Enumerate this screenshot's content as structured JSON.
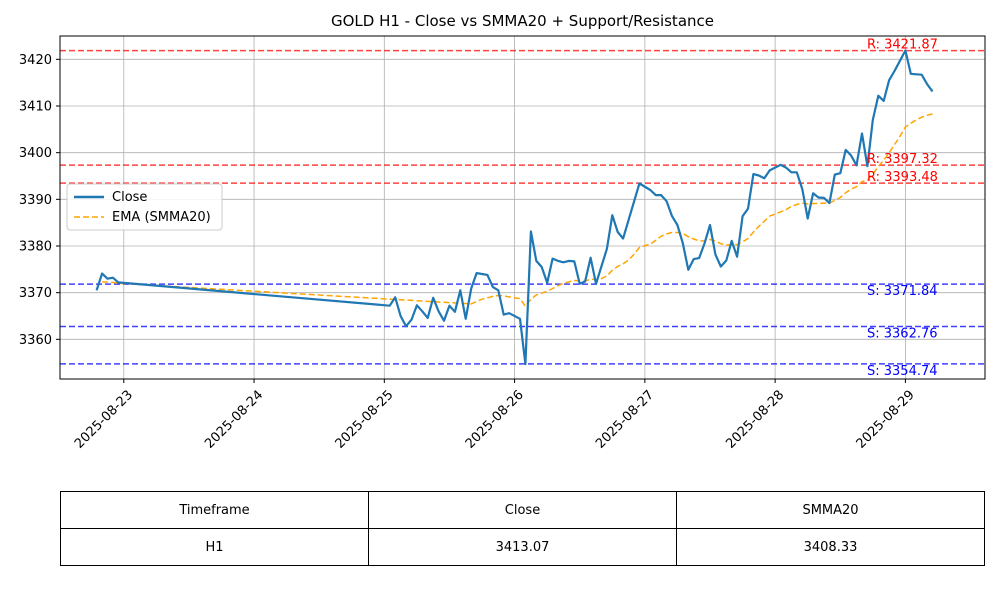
{
  "chart_data": {
    "type": "line",
    "title": "GOLD H1 - Close vs SMMA20 + Support/Resistance",
    "xlabel": "",
    "ylabel": "",
    "x_tick_labels": [
      "2025-08-23",
      "2025-08-24",
      "2025-08-25",
      "2025-08-26",
      "2025-08-27",
      "2025-08-28",
      "2025-08-29"
    ],
    "y_ticks": [
      3360,
      3370,
      3380,
      3390,
      3400,
      3410,
      3420
    ],
    "ylim": [
      3351.5,
      3425.0
    ],
    "xlim": [
      "2025-08-22T12:15",
      "2025-08-29T14:40"
    ],
    "grid": true,
    "legend_position": "left",
    "series": [
      {
        "name": "Close",
        "color": "#1f77b4",
        "style": "solid",
        "points": [
          [
            "2025-08-22T19:00",
            3370.5
          ],
          [
            "2025-08-22T20:00",
            3374.1
          ],
          [
            "2025-08-22T21:00",
            3373.0
          ],
          [
            "2025-08-22T22:00",
            3373.2
          ],
          [
            "2025-08-22T23:00",
            3372.2
          ],
          [
            "2025-08-25T01:00",
            3367.2
          ],
          [
            "2025-08-25T02:00",
            3369.0
          ],
          [
            "2025-08-25T03:00",
            3365.0
          ],
          [
            "2025-08-25T04:00",
            3362.8
          ],
          [
            "2025-08-25T05:00",
            3364.2
          ],
          [
            "2025-08-25T06:00",
            3367.3
          ],
          [
            "2025-08-25T07:00",
            3366.0
          ],
          [
            "2025-08-25T08:00",
            3364.6
          ],
          [
            "2025-08-25T09:00",
            3368.9
          ],
          [
            "2025-08-25T10:00",
            3366.0
          ],
          [
            "2025-08-25T11:00",
            3364.0
          ],
          [
            "2025-08-25T12:00",
            3367.2
          ],
          [
            "2025-08-25T13:00",
            3365.9
          ],
          [
            "2025-08-25T14:00",
            3370.5
          ],
          [
            "2025-08-25T15:00",
            3364.4
          ],
          [
            "2025-08-25T16:00",
            3370.9
          ],
          [
            "2025-08-25T17:00",
            3374.2
          ],
          [
            "2025-08-25T18:00",
            3374.0
          ],
          [
            "2025-08-25T19:00",
            3373.8
          ],
          [
            "2025-08-25T20:00",
            3371.2
          ],
          [
            "2025-08-25T21:00",
            3370.5
          ],
          [
            "2025-08-25T22:00",
            3365.3
          ],
          [
            "2025-08-25T23:00",
            3365.6
          ],
          [
            "2025-08-26T01:00",
            3364.4
          ],
          [
            "2025-08-26T02:00",
            3354.7
          ],
          [
            "2025-08-26T03:00",
            3383.1
          ],
          [
            "2025-08-26T04:00",
            3376.8
          ],
          [
            "2025-08-26T05:00",
            3375.5
          ],
          [
            "2025-08-26T06:00",
            3372.1
          ],
          [
            "2025-08-26T07:00",
            3377.3
          ],
          [
            "2025-08-26T08:00",
            3376.8
          ],
          [
            "2025-08-26T09:00",
            3376.5
          ],
          [
            "2025-08-26T10:00",
            3376.8
          ],
          [
            "2025-08-26T11:00",
            3376.7
          ],
          [
            "2025-08-26T12:00",
            3371.9
          ],
          [
            "2025-08-26T13:00",
            3372.4
          ],
          [
            "2025-08-26T14:00",
            3377.5
          ],
          [
            "2025-08-26T15:00",
            3371.9
          ],
          [
            "2025-08-26T16:00",
            3375.6
          ],
          [
            "2025-08-26T17:00",
            3379.4
          ],
          [
            "2025-08-26T18:00",
            3386.6
          ],
          [
            "2025-08-26T19:00",
            3383.0
          ],
          [
            "2025-08-26T20:00",
            3381.6
          ],
          [
            "2025-08-26T21:00",
            3385.6
          ],
          [
            "2025-08-26T22:00",
            3389.5
          ],
          [
            "2025-08-26T23:00",
            3393.4
          ],
          [
            "2025-08-27T01:00",
            3392.0
          ],
          [
            "2025-08-27T02:00",
            3390.9
          ],
          [
            "2025-08-27T03:00",
            3390.9
          ],
          [
            "2025-08-27T04:00",
            3389.6
          ],
          [
            "2025-08-27T05:00",
            3386.4
          ],
          [
            "2025-08-27T06:00",
            3384.5
          ],
          [
            "2025-08-27T07:00",
            3380.6
          ],
          [
            "2025-08-27T08:00",
            3374.9
          ],
          [
            "2025-08-27T09:00",
            3377.2
          ],
          [
            "2025-08-27T10:00",
            3377.4
          ],
          [
            "2025-08-27T11:00",
            3380.6
          ],
          [
            "2025-08-27T12:00",
            3384.5
          ],
          [
            "2025-08-27T13:00",
            3378.2
          ],
          [
            "2025-08-27T14:00",
            3375.6
          ],
          [
            "2025-08-27T15:00",
            3376.9
          ],
          [
            "2025-08-27T16:00",
            3381.1
          ],
          [
            "2025-08-27T17:00",
            3377.7
          ],
          [
            "2025-08-27T18:00",
            3386.4
          ],
          [
            "2025-08-27T19:00",
            3388.0
          ],
          [
            "2025-08-27T20:00",
            3395.4
          ],
          [
            "2025-08-27T21:00",
            3395.1
          ],
          [
            "2025-08-27T22:00",
            3394.5
          ],
          [
            "2025-08-27T23:00",
            3396.2
          ],
          [
            "2025-08-28T01:00",
            3397.4
          ],
          [
            "2025-08-28T02:00",
            3396.8
          ],
          [
            "2025-08-28T03:00",
            3395.8
          ],
          [
            "2025-08-28T04:00",
            3395.8
          ],
          [
            "2025-08-28T05:00",
            3392.2
          ],
          [
            "2025-08-28T06:00",
            3385.9
          ],
          [
            "2025-08-28T07:00",
            3391.3
          ],
          [
            "2025-08-28T08:00",
            3390.4
          ],
          [
            "2025-08-28T09:00",
            3390.3
          ],
          [
            "2025-08-28T10:00",
            3389.2
          ],
          [
            "2025-08-28T11:00",
            3395.3
          ],
          [
            "2025-08-28T12:00",
            3395.6
          ],
          [
            "2025-08-28T13:00",
            3400.6
          ],
          [
            "2025-08-28T14:00",
            3399.4
          ],
          [
            "2025-08-28T15:00",
            3397.3
          ],
          [
            "2025-08-28T16:00",
            3404.1
          ],
          [
            "2025-08-28T17:00",
            3397.1
          ],
          [
            "2025-08-28T18:00",
            3407.0
          ],
          [
            "2025-08-28T19:00",
            3412.2
          ],
          [
            "2025-08-28T20:00",
            3411.1
          ],
          [
            "2025-08-28T21:00",
            3415.5
          ],
          [
            "2025-08-28T22:00",
            3417.5
          ],
          [
            "2025-08-28T23:00",
            3419.7
          ],
          [
            "2025-08-29T00:00",
            3421.9
          ],
          [
            "2025-08-29T01:00",
            3416.9
          ],
          [
            "2025-08-29T02:00",
            3416.8
          ],
          [
            "2025-08-29T03:00",
            3416.7
          ],
          [
            "2025-08-29T04:00",
            3414.7
          ],
          [
            "2025-08-29T05:00",
            3413.1
          ]
        ]
      },
      {
        "name": "EMA (SMMA20)",
        "color": "#ffa500",
        "style": "dashed",
        "points": [
          [
            "2025-08-22T20:00",
            3372.3
          ],
          [
            "2025-08-22T22:00",
            3372.2
          ],
          [
            "2025-08-22T23:00",
            3372.0
          ],
          [
            "2025-08-25T16:00",
            3367.6
          ],
          [
            "2025-08-25T17:00",
            3368.1
          ],
          [
            "2025-08-25T18:00",
            3368.6
          ],
          [
            "2025-08-25T19:00",
            3368.9
          ],
          [
            "2025-08-25T20:00",
            3369.2
          ],
          [
            "2025-08-25T21:00",
            3369.4
          ],
          [
            "2025-08-25T22:00",
            3369.3
          ],
          [
            "2025-08-25T23:00",
            3369.1
          ],
          [
            "2025-08-26T01:00",
            3368.7
          ],
          [
            "2025-08-26T02:00",
            3367.1
          ],
          [
            "2025-08-26T03:00",
            3368.6
          ],
          [
            "2025-08-26T04:00",
            3369.5
          ],
          [
            "2025-08-26T05:00",
            3369.9
          ],
          [
            "2025-08-26T06:00",
            3370.3
          ],
          [
            "2025-08-26T07:00",
            3370.9
          ],
          [
            "2025-08-26T08:00",
            3371.5
          ],
          [
            "2025-08-26T09:00",
            3372.0
          ],
          [
            "2025-08-26T10:00",
            3372.3
          ],
          [
            "2025-08-26T11:00",
            3372.6
          ],
          [
            "2025-08-26T12:00",
            3372.5
          ],
          [
            "2025-08-26T13:00",
            3372.5
          ],
          [
            "2025-08-26T14:00",
            3372.9
          ],
          [
            "2025-08-26T15:00",
            3372.8
          ],
          [
            "2025-08-26T16:00",
            3373.0
          ],
          [
            "2025-08-26T17:00",
            3373.6
          ],
          [
            "2025-08-26T18:00",
            3374.8
          ],
          [
            "2025-08-26T19:00",
            3375.6
          ],
          [
            "2025-08-26T20:00",
            3376.2
          ],
          [
            "2025-08-26T21:00",
            3377.0
          ],
          [
            "2025-08-26T22:00",
            3378.2
          ],
          [
            "2025-08-26T23:00",
            3379.7
          ],
          [
            "2025-08-27T01:00",
            3380.4
          ],
          [
            "2025-08-27T02:00",
            3381.2
          ],
          [
            "2025-08-27T03:00",
            3382.1
          ],
          [
            "2025-08-27T04:00",
            3382.6
          ],
          [
            "2025-08-27T05:00",
            3382.9
          ],
          [
            "2025-08-27T06:00",
            3382.9
          ],
          [
            "2025-08-27T07:00",
            3382.7
          ],
          [
            "2025-08-27T08:00",
            3382.0
          ],
          [
            "2025-08-27T09:00",
            3381.5
          ],
          [
            "2025-08-27T10:00",
            3381.1
          ],
          [
            "2025-08-27T11:00",
            3381.1
          ],
          [
            "2025-08-27T12:00",
            3381.4
          ],
          [
            "2025-08-27T13:00",
            3381.1
          ],
          [
            "2025-08-27T14:00",
            3380.5
          ],
          [
            "2025-08-27T15:00",
            3380.2
          ],
          [
            "2025-08-27T16:00",
            3380.3
          ],
          [
            "2025-08-27T17:00",
            3380.3
          ],
          [
            "2025-08-27T18:00",
            3380.9
          ],
          [
            "2025-08-27T19:00",
            3381.6
          ],
          [
            "2025-08-27T20:00",
            3383.0
          ],
          [
            "2025-08-27T21:00",
            3384.2
          ],
          [
            "2025-08-27T22:00",
            3385.3
          ],
          [
            "2025-08-27T23:00",
            3386.4
          ],
          [
            "2025-08-28T01:00",
            3387.3
          ],
          [
            "2025-08-28T02:00",
            3387.8
          ],
          [
            "2025-08-28T03:00",
            3388.5
          ],
          [
            "2025-08-28T04:00",
            3388.9
          ],
          [
            "2025-08-28T05:00",
            3389.2
          ],
          [
            "2025-08-28T06:00",
            3389.0
          ],
          [
            "2025-08-28T07:00",
            3389.1
          ],
          [
            "2025-08-28T08:00",
            3389.1
          ],
          [
            "2025-08-28T09:00",
            3389.2
          ],
          [
            "2025-08-28T10:00",
            3389.2
          ],
          [
            "2025-08-28T11:00",
            3389.8
          ],
          [
            "2025-08-28T12:00",
            3390.4
          ],
          [
            "2025-08-28T13:00",
            3391.4
          ],
          [
            "2025-08-28T14:00",
            3392.2
          ],
          [
            "2025-08-28T15:00",
            3392.7
          ],
          [
            "2025-08-28T16:00",
            3393.8
          ],
          [
            "2025-08-28T17:00",
            3394.1
          ],
          [
            "2025-08-28T18:00",
            3395.4
          ],
          [
            "2025-08-28T19:00",
            3397.0
          ],
          [
            "2025-08-28T20:00",
            3398.4
          ],
          [
            "2025-08-28T21:00",
            3400.0
          ],
          [
            "2025-08-28T22:00",
            3401.7
          ],
          [
            "2025-08-28T23:00",
            3403.5
          ],
          [
            "2025-08-29T00:00",
            3405.5
          ],
          [
            "2025-08-29T01:00",
            3406.3
          ],
          [
            "2025-08-29T02:00",
            3407.0
          ],
          [
            "2025-08-29T03:00",
            3407.6
          ],
          [
            "2025-08-29T04:00",
            3408.0
          ],
          [
            "2025-08-29T05:00",
            3408.3
          ]
        ]
      }
    ],
    "levels": [
      {
        "kind": "resistance",
        "value": 3421.87,
        "label": "R: 3421.87",
        "color": "#ff0000"
      },
      {
        "kind": "resistance",
        "value": 3397.32,
        "label": "R: 3397.32",
        "color": "#ff0000"
      },
      {
        "kind": "resistance",
        "value": 3393.48,
        "label": "R: 3393.48",
        "color": "#ff0000"
      },
      {
        "kind": "support",
        "value": 3371.84,
        "label": "S: 3371.84",
        "color": "#0000ff"
      },
      {
        "kind": "support",
        "value": 3362.76,
        "label": "S: 3362.76",
        "color": "#0000ff"
      },
      {
        "kind": "support",
        "value": 3354.74,
        "label": "S: 3354.74",
        "color": "#0000ff"
      }
    ]
  },
  "table": {
    "headers": [
      "Timeframe",
      "Close",
      "SMMA20"
    ],
    "row": [
      "H1",
      "3413.07",
      "3408.33"
    ]
  }
}
